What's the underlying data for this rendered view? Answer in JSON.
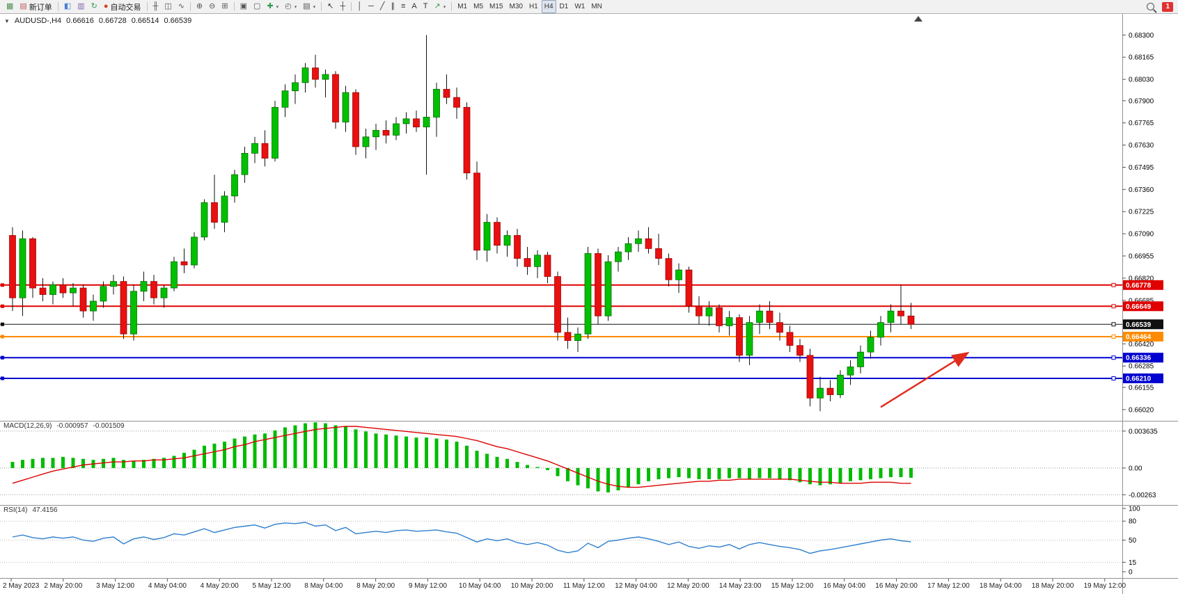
{
  "toolbar": {
    "dropdown_glyph": "▾",
    "notification_count": "1",
    "items": [
      {
        "name": "new-chart-icon",
        "glyph": "▦",
        "color": "#4f8f4f"
      },
      {
        "name": "new-order-button",
        "icon_name": "new-order-icon",
        "glyph": "▤",
        "color": "#c05a5a",
        "label": "新订单"
      },
      {
        "type": "sep"
      },
      {
        "name": "charts-icon",
        "glyph": "◧",
        "color": "#4a7fd4"
      },
      {
        "name": "profiles-icon",
        "glyph": "▥",
        "color": "#8060b0"
      },
      {
        "name": "refresh-icon",
        "glyph": "↻",
        "color": "#2f9d4f"
      },
      {
        "name": "autotrade-button",
        "icon_name": "autotrade-icon",
        "glyph": "●",
        "color": "#d84315",
        "label": "自动交易"
      },
      {
        "type": "sep"
      },
      {
        "name": "bar-chart-icon",
        "glyph": "╫",
        "color": "#555555"
      },
      {
        "name": "candlestick-chart-icon",
        "glyph": "◫",
        "color": "#555555"
      },
      {
        "name": "line-chart-icon",
        "glyph": "∿",
        "color": "#555555"
      },
      {
        "type": "sep"
      },
      {
        "name": "zoom-in-icon",
        "glyph": "⊕",
        "color": "#555555"
      },
      {
        "name": "zoom-out-icon",
        "glyph": "⊖",
        "color": "#555555"
      },
      {
        "name": "tile-windows-icon",
        "glyph": "⊞",
        "color": "#555555"
      },
      {
        "type": "sep"
      },
      {
        "name": "auto-arrange-icon",
        "glyph": "▣",
        "color": "#555555"
      },
      {
        "name": "arrange-windows-icon",
        "glyph": "▢",
        "color": "#555555"
      },
      {
        "name": "indicators-icon",
        "glyph": "✚",
        "color": "#2f9d4f",
        "dropdown": true
      },
      {
        "name": "periods-icon",
        "glyph": "◴",
        "color": "#555555",
        "dropdown": true
      },
      {
        "name": "templates-icon",
        "glyph": "▤",
        "color": "#555555",
        "dropdown": true
      },
      {
        "type": "sep"
      },
      {
        "name": "cursor-icon",
        "glyph": "↖",
        "color": "#333333"
      },
      {
        "name": "crosshair-icon",
        "glyph": "┼",
        "color": "#333333"
      },
      {
        "type": "sep"
      },
      {
        "name": "vertical-line-icon",
        "glyph": "│",
        "color": "#333333"
      },
      {
        "name": "horizontal-line-icon",
        "glyph": "─",
        "color": "#333333"
      },
      {
        "name": "trendline-icon",
        "glyph": "╱",
        "color": "#333333"
      },
      {
        "name": "channel-icon",
        "glyph": "∥",
        "color": "#333333"
      },
      {
        "name": "fibonacci-icon",
        "glyph": "≡",
        "color": "#333333"
      },
      {
        "name": "text-icon",
        "glyph": "A",
        "color": "#333333"
      },
      {
        "name": "text-label-icon",
        "glyph": "T",
        "color": "#333333"
      },
      {
        "name": "shapes-icon",
        "glyph": "↗",
        "color": "#2f9d4f",
        "dropdown": true
      },
      {
        "type": "sep"
      },
      {
        "name": "tf-m1-button",
        "label": "M1",
        "tf": true
      },
      {
        "name": "tf-m5-button",
        "label": "M5",
        "tf": true
      },
      {
        "name": "tf-m15-button",
        "label": "M15",
        "tf": true
      },
      {
        "name": "tf-m30-button",
        "label": "M30",
        "tf": true
      },
      {
        "name": "tf-h1-button",
        "label": "H1",
        "tf": true
      },
      {
        "name": "tf-h4-button",
        "label": "H4",
        "tf": true,
        "active": true
      },
      {
        "name": "tf-d1-button",
        "label": "D1",
        "tf": true
      },
      {
        "name": "tf-w1-button",
        "label": "W1",
        "tf": true
      },
      {
        "name": "tf-mn-button",
        "label": "MN",
        "tf": true
      }
    ]
  },
  "chart": {
    "header": {
      "collapse_glyph": "▼",
      "symbol": "AUDUSD-,H4",
      "open": "0.66616",
      "high": "0.66728",
      "low": "0.66514",
      "close": "0.66539"
    }
  },
  "chart_data": {
    "type": "candlestick",
    "symbol": "AUDUSD",
    "timeframe": "H4",
    "colors": {
      "bull": "#00c000",
      "bear": "#e81010",
      "wick": "#111111",
      "bull_edge": "#006600",
      "bear_edge": "#990000"
    },
    "y_axis": {
      "range": [
        0.6596,
        0.6842
      ],
      "ticks": [
        "0.68300",
        "0.68165",
        "0.68030",
        "0.67900",
        "0.67765",
        "0.67630",
        "0.67495",
        "0.67360",
        "0.67225",
        "0.67090",
        "0.66955",
        "0.66820",
        "0.66685",
        "0.66420",
        "0.66285",
        "0.66155",
        "0.66020"
      ]
    },
    "x_labels": [
      "2 May 2023",
      "2 May 20:00",
      "3 May 12:00",
      "4 May 04:00",
      "4 May 20:00",
      "5 May 12:00",
      "8 May 04:00",
      "8 May 20:00",
      "9 May 12:00",
      "10 May 04:00",
      "10 May 20:00",
      "11 May 12:00",
      "12 May 04:00",
      "12 May 20:00",
      "14 May 23:00",
      "15 May 12:00",
      "16 May 04:00",
      "16 May 20:00",
      "17 May 12:00",
      "18 May 04:00",
      "18 May 20:00",
      "19 May 12:00"
    ],
    "h_lines": [
      {
        "price": 0.66778,
        "label": "0.66778",
        "color": "#e00000",
        "width": 2
      },
      {
        "price": 0.66649,
        "label": "0.66649",
        "color": "#e00000",
        "width": 2
      },
      {
        "price": 0.66539,
        "label": "0.66539",
        "color": "#101010",
        "width": 1
      },
      {
        "price": 0.66464,
        "label": "0.66464",
        "color": "#ff8c00",
        "width": 2
      },
      {
        "price": 0.66336,
        "label": "0.66336",
        "color": "#0000d0",
        "width": 2
      },
      {
        "price": 0.6621,
        "label": "0.66210",
        "color": "#0000d0",
        "width": 2
      }
    ],
    "ohlc": [
      [
        0.6708,
        0.6713,
        0.6662,
        0.667
      ],
      [
        0.667,
        0.6711,
        0.6659,
        0.6706
      ],
      [
        0.6706,
        0.6707,
        0.667,
        0.6676
      ],
      [
        0.6676,
        0.6682,
        0.6668,
        0.6672
      ],
      [
        0.6672,
        0.668,
        0.6666,
        0.6678
      ],
      [
        0.6678,
        0.6682,
        0.667,
        0.6673
      ],
      [
        0.6673,
        0.6679,
        0.6665,
        0.6676
      ],
      [
        0.6676,
        0.6678,
        0.6658,
        0.6662
      ],
      [
        0.6662,
        0.6672,
        0.6656,
        0.6668
      ],
      [
        0.6668,
        0.668,
        0.6664,
        0.6677
      ],
      [
        0.6677,
        0.6684,
        0.6672,
        0.668
      ],
      [
        0.668,
        0.6683,
        0.6645,
        0.6648
      ],
      [
        0.6648,
        0.6678,
        0.6644,
        0.6674
      ],
      [
        0.6674,
        0.6686,
        0.6668,
        0.668
      ],
      [
        0.668,
        0.6684,
        0.6666,
        0.667
      ],
      [
        0.667,
        0.6678,
        0.6664,
        0.6676
      ],
      [
        0.6676,
        0.6695,
        0.6674,
        0.6692
      ],
      [
        0.6692,
        0.67,
        0.6685,
        0.669
      ],
      [
        0.669,
        0.671,
        0.6688,
        0.6707
      ],
      [
        0.6707,
        0.673,
        0.6705,
        0.6728
      ],
      [
        0.6728,
        0.6745,
        0.6712,
        0.6716
      ],
      [
        0.6716,
        0.6735,
        0.671,
        0.6732
      ],
      [
        0.6732,
        0.6748,
        0.6728,
        0.6745
      ],
      [
        0.6745,
        0.6762,
        0.674,
        0.6758
      ],
      [
        0.6758,
        0.6768,
        0.6752,
        0.6764
      ],
      [
        0.6764,
        0.6772,
        0.675,
        0.6755
      ],
      [
        0.6755,
        0.679,
        0.6753,
        0.6786
      ],
      [
        0.6786,
        0.68,
        0.678,
        0.6796
      ],
      [
        0.6796,
        0.6806,
        0.6788,
        0.6801
      ],
      [
        0.6801,
        0.6813,
        0.6795,
        0.681
      ],
      [
        0.681,
        0.6818,
        0.6798,
        0.6803
      ],
      [
        0.6803,
        0.6809,
        0.6792,
        0.6806
      ],
      [
        0.6806,
        0.6808,
        0.6773,
        0.6777
      ],
      [
        0.6777,
        0.6799,
        0.6771,
        0.6795
      ],
      [
        0.6795,
        0.6797,
        0.6757,
        0.6762
      ],
      [
        0.6762,
        0.6773,
        0.6755,
        0.6768
      ],
      [
        0.6768,
        0.6776,
        0.676,
        0.6772
      ],
      [
        0.6772,
        0.6778,
        0.6764,
        0.6769
      ],
      [
        0.6769,
        0.678,
        0.6766,
        0.6776
      ],
      [
        0.6776,
        0.6783,
        0.677,
        0.6779
      ],
      [
        0.6779,
        0.6784,
        0.6771,
        0.6774
      ],
      [
        0.6774,
        0.683,
        0.6745,
        0.678
      ],
      [
        0.678,
        0.6801,
        0.6768,
        0.6797
      ],
      [
        0.6797,
        0.6806,
        0.6788,
        0.6792
      ],
      [
        0.6792,
        0.6798,
        0.6779,
        0.6786
      ],
      [
        0.6786,
        0.6789,
        0.6742,
        0.6746
      ],
      [
        0.6746,
        0.6753,
        0.6693,
        0.6699
      ],
      [
        0.6699,
        0.6721,
        0.6692,
        0.6716
      ],
      [
        0.6716,
        0.6719,
        0.6697,
        0.6702
      ],
      [
        0.6702,
        0.6711,
        0.6695,
        0.6708
      ],
      [
        0.6708,
        0.6712,
        0.6689,
        0.6694
      ],
      [
        0.6694,
        0.6701,
        0.6684,
        0.6689
      ],
      [
        0.6689,
        0.6699,
        0.6682,
        0.6696
      ],
      [
        0.6696,
        0.6698,
        0.6679,
        0.6683
      ],
      [
        0.6683,
        0.6686,
        0.6644,
        0.6649
      ],
      [
        0.6649,
        0.6658,
        0.6639,
        0.6644
      ],
      [
        0.6644,
        0.6652,
        0.6637,
        0.6648
      ],
      [
        0.6648,
        0.6701,
        0.6645,
        0.6697
      ],
      [
        0.6697,
        0.67,
        0.6654,
        0.6659
      ],
      [
        0.6659,
        0.6696,
        0.6656,
        0.6692
      ],
      [
        0.6692,
        0.6701,
        0.6686,
        0.6698
      ],
      [
        0.6698,
        0.6707,
        0.6693,
        0.6703
      ],
      [
        0.6703,
        0.6711,
        0.6698,
        0.6706
      ],
      [
        0.6706,
        0.6713,
        0.6697,
        0.67
      ],
      [
        0.67,
        0.6709,
        0.669,
        0.6694
      ],
      [
        0.6694,
        0.6697,
        0.6677,
        0.6681
      ],
      [
        0.6681,
        0.6691,
        0.6673,
        0.6687
      ],
      [
        0.6687,
        0.6689,
        0.6661,
        0.6665
      ],
      [
        0.6665,
        0.6671,
        0.6654,
        0.6659
      ],
      [
        0.6659,
        0.6668,
        0.6653,
        0.6664
      ],
      [
        0.6664,
        0.6666,
        0.6649,
        0.6653
      ],
      [
        0.6653,
        0.6662,
        0.6647,
        0.6658
      ],
      [
        0.6658,
        0.666,
        0.6631,
        0.6635
      ],
      [
        0.6635,
        0.6659,
        0.6629,
        0.6655
      ],
      [
        0.6655,
        0.6666,
        0.6648,
        0.6662
      ],
      [
        0.6662,
        0.6668,
        0.6651,
        0.6655
      ],
      [
        0.6655,
        0.6661,
        0.6644,
        0.6649
      ],
      [
        0.6649,
        0.6653,
        0.6637,
        0.6641
      ],
      [
        0.6641,
        0.6645,
        0.6631,
        0.6635
      ],
      [
        0.6635,
        0.6639,
        0.6604,
        0.6609
      ],
      [
        0.6609,
        0.6622,
        0.6601,
        0.6615
      ],
      [
        0.6615,
        0.662,
        0.6607,
        0.6611
      ],
      [
        0.6611,
        0.6626,
        0.6609,
        0.6623
      ],
      [
        0.6623,
        0.6632,
        0.6617,
        0.6628
      ],
      [
        0.6628,
        0.6641,
        0.6624,
        0.6637
      ],
      [
        0.6637,
        0.665,
        0.6633,
        0.6646
      ],
      [
        0.6646,
        0.6659,
        0.6641,
        0.6655
      ],
      [
        0.6655,
        0.6666,
        0.6649,
        0.6662
      ],
      [
        0.6662,
        0.6678,
        0.6654,
        0.6659
      ],
      [
        0.6659,
        0.6667,
        0.6651,
        0.66539
      ]
    ],
    "indicators": {
      "macd": {
        "label": "MACD(12,26,9)",
        "value_text": "-0.000957",
        "signal_text": "-0.001509",
        "range": [
          -0.0035,
          0.00451
        ],
        "ticks": [
          {
            "label": "0.003635",
            "value": 0.003635
          },
          {
            "label": "0.00",
            "value": 0
          },
          {
            "label": "-0.00263",
            "value": -0.00263
          }
        ],
        "colors": {
          "histogram": "#00bb00",
          "signal": "#dd0000"
        },
        "values": [
          0.0006,
          0.0008,
          0.0009,
          0.001,
          0.001,
          0.0011,
          0.001,
          0.0009,
          0.0008,
          0.0009,
          0.001,
          0.0008,
          0.0007,
          0.0008,
          0.0009,
          0.001,
          0.0012,
          0.0015,
          0.0018,
          0.0022,
          0.0024,
          0.0026,
          0.0029,
          0.0031,
          0.0033,
          0.0034,
          0.0037,
          0.004,
          0.0042,
          0.0044,
          0.0045,
          0.0044,
          0.0042,
          0.0041,
          0.0038,
          0.0036,
          0.0034,
          0.0033,
          0.0032,
          0.0031,
          0.003,
          0.003,
          0.0029,
          0.0028,
          0.0026,
          0.0022,
          0.0017,
          0.0014,
          0.0011,
          0.0009,
          0.0006,
          0.0003,
          0.0001,
          -0.0002,
          -0.0008,
          -0.0013,
          -0.0017,
          -0.002,
          -0.0023,
          -0.0024,
          -0.0022,
          -0.0019,
          -0.0016,
          -0.0013,
          -0.0011,
          -0.001,
          -0.0009,
          -0.001,
          -0.0011,
          -0.0011,
          -0.0011,
          -0.001,
          -0.001,
          -0.0011,
          -0.001,
          -0.001,
          -0.0011,
          -0.0012,
          -0.0014,
          -0.0016,
          -0.0017,
          -0.0016,
          -0.0015,
          -0.0013,
          -0.0012,
          -0.0011,
          -0.001,
          -0.0009,
          -0.0009,
          -0.000957
        ],
        "signal": [
          -0.0015,
          -0.0012,
          -0.0009,
          -0.0006,
          -0.0003,
          -0.0001,
          0.0001,
          0.0003,
          0.0004,
          0.0005,
          0.0006,
          0.0006,
          0.0007,
          0.0007,
          0.0008,
          0.0008,
          0.0009,
          0.001,
          0.0012,
          0.0014,
          0.0016,
          0.0018,
          0.0021,
          0.0023,
          0.0026,
          0.0028,
          0.003,
          0.0032,
          0.0034,
          0.0036,
          0.0038,
          0.0039,
          0.004,
          0.0041,
          0.0041,
          0.004,
          0.0039,
          0.0038,
          0.0037,
          0.0036,
          0.0035,
          0.0034,
          0.0033,
          0.0032,
          0.0031,
          0.0029,
          0.0027,
          0.0024,
          0.0021,
          0.0019,
          0.0016,
          0.0013,
          0.001,
          0.0007,
          0.0003,
          -0.0001,
          -0.0005,
          -0.0009,
          -0.0013,
          -0.0016,
          -0.0018,
          -0.0019,
          -0.0019,
          -0.0018,
          -0.0017,
          -0.0016,
          -0.0015,
          -0.0014,
          -0.0013,
          -0.0013,
          -0.0012,
          -0.0012,
          -0.0011,
          -0.0011,
          -0.0011,
          -0.0011,
          -0.0011,
          -0.0011,
          -0.0012,
          -0.0013,
          -0.0014,
          -0.0014,
          -0.0015,
          -0.0015,
          -0.0015,
          -0.0014,
          -0.0014,
          -0.0014,
          -0.0015,
          -0.001509
        ]
      },
      "rsi": {
        "label": "RSI(14)",
        "value_text": "47.4156",
        "color": "#2e7fd0",
        "levels": [
          80,
          50,
          15
        ],
        "ticks": [
          {
            "label": "100",
            "value": 100
          },
          {
            "label": "80",
            "value": 80
          },
          {
            "label": "50",
            "value": 50
          },
          {
            "label": "15",
            "value": 15
          },
          {
            "label": "0",
            "value": 0
          }
        ],
        "values": [
          55,
          58,
          54,
          52,
          55,
          53,
          55,
          50,
          48,
          53,
          55,
          44,
          52,
          55,
          51,
          54,
          60,
          58,
          63,
          68,
          62,
          66,
          70,
          72,
          74,
          69,
          75,
          77,
          76,
          78,
          72,
          74,
          65,
          70,
          60,
          62,
          64,
          62,
          65,
          66,
          64,
          65,
          66,
          63,
          61,
          54,
          47,
          52,
          49,
          52,
          46,
          43,
          46,
          42,
          34,
          30,
          33,
          45,
          38,
          48,
          50,
          53,
          55,
          52,
          48,
          43,
          47,
          40,
          37,
          41,
          39,
          43,
          36,
          43,
          46,
          43,
          40,
          38,
          35,
          29,
          33,
          35,
          38,
          41,
          44,
          47,
          50,
          52,
          49,
          47.4156
        ]
      }
    },
    "annotation": {
      "type": "trend-arrow",
      "color": "#e02b1d",
      "from": {
        "index": 86,
        "price": 0.66035
      },
      "to": {
        "index": 94.5,
        "price": 0.6636
      }
    }
  }
}
